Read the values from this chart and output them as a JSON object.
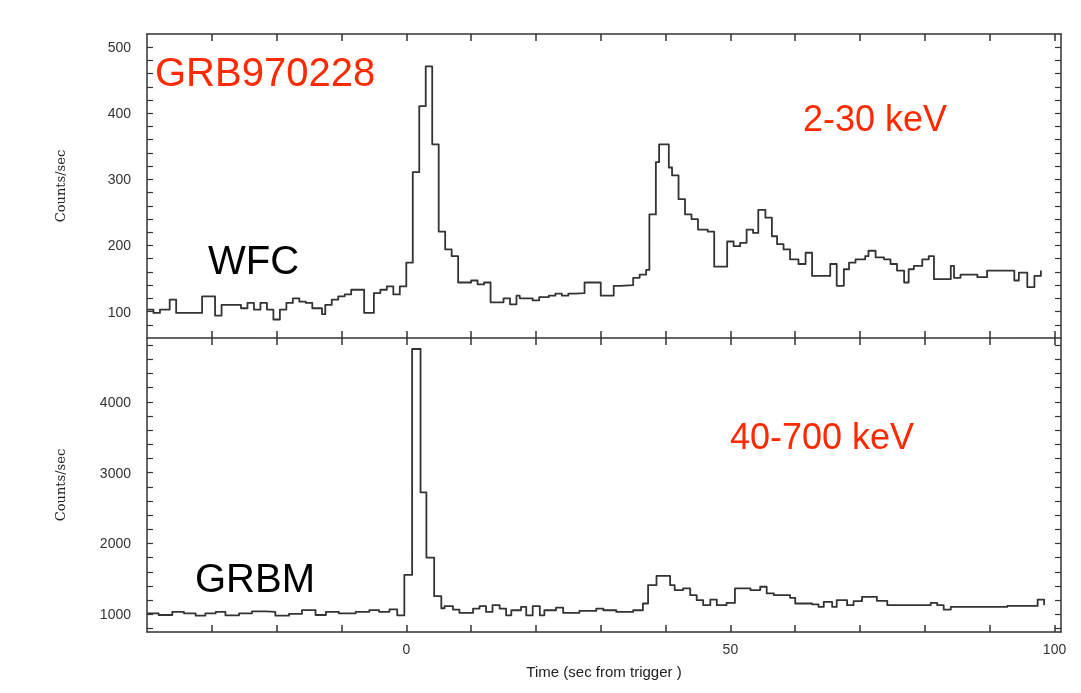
{
  "chart_data": [
    {
      "type": "step",
      "ylabel": "Counts/sec",
      "annotations": [
        "GRB970228",
        "2-30 keV",
        "WFC"
      ],
      "xlim": [
        -40,
        101
      ],
      "ylim": [
        60,
        520
      ],
      "tick_labels": "y",
      "marker": "none",
      "line_style": "solid",
      "grid": false,
      "xticks": [
        {
          "value": -30,
          "label": null
        },
        {
          "value": -20,
          "label": null
        },
        {
          "value": -10,
          "label": null
        },
        {
          "value": 0,
          "label": null
        },
        {
          "value": 10,
          "label": null
        },
        {
          "value": 20,
          "label": null
        },
        {
          "value": 30,
          "label": null
        },
        {
          "value": 40,
          "label": null
        },
        {
          "value": 50,
          "label": null
        },
        {
          "value": 60,
          "label": null
        },
        {
          "value": 70,
          "label": null
        },
        {
          "value": 80,
          "label": null
        },
        {
          "value": 90,
          "label": null
        },
        {
          "value": 100,
          "label": null
        }
      ],
      "yticks": [
        {
          "value": 80,
          "label": null
        },
        100,
        {
          "value": 120,
          "label": null
        },
        {
          "value": 140,
          "label": null
        },
        {
          "value": 160,
          "label": null
        },
        {
          "value": 180,
          "label": null
        },
        200,
        {
          "value": 220,
          "label": null
        },
        {
          "value": 240,
          "label": null
        },
        {
          "value": 260,
          "label": null
        },
        {
          "value": 280,
          "label": null
        },
        300,
        {
          "value": 320,
          "label": null
        },
        {
          "value": 340,
          "label": null
        },
        {
          "value": 360,
          "label": null
        },
        {
          "value": 380,
          "label": null
        },
        400,
        {
          "value": 420,
          "label": null
        },
        {
          "value": 440,
          "label": null
        },
        {
          "value": 460,
          "label": null
        },
        {
          "value": 480,
          "label": null
        },
        500
      ],
      "series": [
        {
          "color": "#333333",
          "x": [
            -40,
            -39,
            -38,
            -36.5,
            -35.5,
            -31.5,
            -29.5,
            -28.5,
            -25.5,
            -24.5,
            -23.5,
            -22.5,
            -21.5,
            -20.5,
            -19.5,
            -18.5,
            -17.5,
            -16.5,
            -15.5,
            -14.5,
            -13,
            -12.5,
            -11.5,
            -10.5,
            -9.5,
            -8.5,
            -6.5,
            -5,
            -4,
            -3,
            -2,
            -1,
            0,
            1,
            2,
            3,
            4,
            5,
            6,
            7,
            8,
            10,
            11,
            12,
            13,
            15,
            16,
            17,
            17.5,
            19.5,
            20.5,
            22,
            23,
            24,
            25,
            26,
            27.5,
            30,
            32,
            33,
            35,
            36,
            37,
            37.5,
            38.5,
            39,
            40.5,
            41,
            42,
            43,
            44,
            45,
            46.5,
            47.5,
            49.5,
            50.5,
            51.5,
            52.5,
            53.5,
            54.3,
            55.4,
            56.4,
            57.2,
            58.2,
            59.2,
            60.5,
            61.6,
            62.6,
            65.4,
            66.4,
            67.5,
            68.3,
            69.3,
            70.8,
            71.3,
            72.4,
            73.7,
            74.7,
            75.7,
            76.8,
            77.5,
            78.3,
            79.6,
            80.6,
            81.4,
            84,
            84.5,
            85.5,
            88.1,
            89.6,
            93.8,
            94.5,
            95.8,
            96.9,
            97.9
          ],
          "values": [
            103,
            98,
            103,
            118,
            98,
            123,
            94,
            110,
            105,
            113,
            103,
            113,
            103,
            88,
            103,
            113,
            120,
            115,
            113,
            105,
            96,
            110,
            118,
            123,
            126,
            133,
            98,
            128,
            133,
            138,
            126,
            138,
            174,
            311,
            411,
            471,
            353,
            221,
            194,
            184,
            144,
            147,
            141,
            144,
            114,
            120,
            111,
            124,
            120,
            117,
            122,
            124,
            127,
            124,
            127,
            128,
            144,
            124,
            139,
            140,
            151,
            156,
            163,
            247,
            326,
            353,
            318,
            306,
            270,
            247,
            240,
            224,
            221,
            168,
            206,
            199,
            204,
            224,
            219,
            254,
            242,
            214,
            202,
            194,
            179,
            172,
            189,
            154,
            172,
            139,
            164,
            174,
            179,
            184,
            192,
            182,
            179,
            172,
            162,
            144,
            164,
            169,
            179,
            184,
            149,
            169,
            151,
            156,
            152,
            162,
            147,
            159,
            137,
            154,
            162
          ]
        }
      ]
    },
    {
      "type": "step",
      "xlabel": "Time (sec from trigger )",
      "ylabel": "Counts/sec",
      "annotations": [
        "40-700 keV",
        "GRBM"
      ],
      "xlim": [
        -40,
        101
      ],
      "ylim": [
        750,
        4900
      ],
      "marker": "none",
      "line_style": "solid",
      "grid": false,
      "xticks": [
        {
          "value": -30,
          "label": null
        },
        {
          "value": -20,
          "label": null
        },
        {
          "value": -10,
          "label": null
        },
        0,
        {
          "value": 10,
          "label": null
        },
        {
          "value": 20,
          "label": null
        },
        {
          "value": 30,
          "label": null
        },
        {
          "value": 40,
          "label": null
        },
        50,
        {
          "value": 60,
          "label": null
        },
        {
          "value": 70,
          "label": null
        },
        {
          "value": 80,
          "label": null
        },
        {
          "value": 90,
          "label": null
        },
        100
      ],
      "yticks": [
        {
          "value": 800,
          "label": null
        },
        1000,
        {
          "value": 1200,
          "label": null
        },
        {
          "value": 1400,
          "label": null
        },
        {
          "value": 1600,
          "label": null
        },
        {
          "value": 1800,
          "label": null
        },
        2000,
        {
          "value": 2200,
          "label": null
        },
        {
          "value": 2400,
          "label": null
        },
        {
          "value": 2600,
          "label": null
        },
        {
          "value": 2800,
          "label": null
        },
        3000,
        {
          "value": 3200,
          "label": null
        },
        {
          "value": 3400,
          "label": null
        },
        {
          "value": 3600,
          "label": null
        },
        {
          "value": 3800,
          "label": null
        },
        4000,
        {
          "value": 4200,
          "label": null
        },
        {
          "value": 4400,
          "label": null
        },
        {
          "value": 4600,
          "label": null
        },
        {
          "value": 4800,
          "label": null
        }
      ],
      "series": [
        {
          "color": "#333333",
          "x": [
            -40,
            -38.2,
            -36.1,
            -34.3,
            -32.5,
            -31,
            -29.4,
            -27.9,
            -25.8,
            -23.8,
            -21.7,
            -20.2,
            -18.1,
            -16.1,
            -14,
            -12.4,
            -10.4,
            -7.8,
            -5.7,
            -4.2,
            -2.6,
            -1.4,
            -0.3,
            0.9,
            2.2,
            3.1,
            4.3,
            5.4,
            5.9,
            7.2,
            8.2,
            10.3,
            11.3,
            12.3,
            13.3,
            14.4,
            15.4,
            16.2,
            17.7,
            18.5,
            19.5,
            20.6,
            21.3,
            23.1,
            24.2,
            26.7,
            29.3,
            30.4,
            32.4,
            35,
            36.5,
            37.3,
            38.6,
            40.7,
            41.4,
            42.7,
            43.8,
            44.8,
            45.8,
            46.9,
            47.9,
            49.4,
            50.7,
            53.1,
            54.6,
            55.6,
            56.7,
            59.2,
            60,
            62.6,
            63.6,
            64.4,
            65.7,
            66.4,
            68,
            69,
            70.3,
            72.6,
            74.2,
            80.9,
            81.9,
            82.9,
            84,
            92.7,
            97.4,
            98.4
          ],
          "values": [
            1014,
            990,
            1035,
            1014,
            980,
            1014,
            1035,
            985,
            1014,
            1040,
            1035,
            980,
            1005,
            1060,
            990,
            1035,
            1014,
            1035,
            1060,
            1035,
            1070,
            985,
            1555,
            4745,
            2720,
            1800,
            1256,
            1085,
            1114,
            1066,
            1019,
            1080,
            1114,
            1033,
            1128,
            1080,
            986,
            1057,
            1104,
            986,
            1114,
            986,
            1057,
            1095,
            1019,
            1047,
            1080,
            1057,
            1033,
            1057,
            1152,
            1413,
            1541,
            1413,
            1342,
            1365,
            1270,
            1199,
            1128,
            1208,
            1128,
            1161,
            1365,
            1342,
            1389,
            1294,
            1270,
            1232,
            1152,
            1140,
            1104,
            1176,
            1104,
            1199,
            1128,
            1185,
            1247,
            1190,
            1128,
            1161,
            1128,
            1066,
            1104,
            1118,
            1208,
            1128
          ]
        }
      ]
    }
  ]
}
